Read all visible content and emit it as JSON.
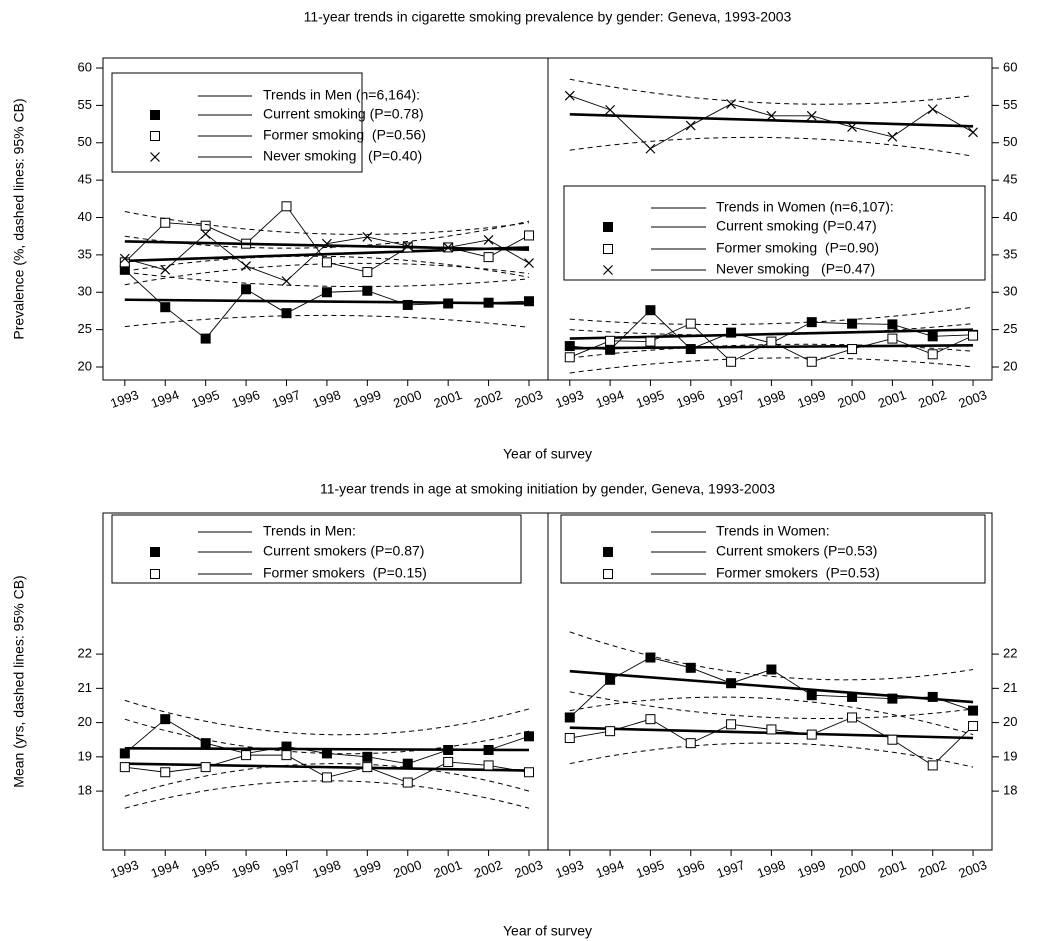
{
  "chart_data": [
    {
      "type": "line",
      "title": "11-year trends in cigarette smoking prevalence by gender: Geneva, 1993-2003",
      "xlabel": "Year of survey",
      "ylabel": "Prevalence (%, dashed lines: 95% CB)",
      "ylim": [
        18.26,
        61.34
      ],
      "yticks": [
        20,
        25,
        30,
        35,
        40,
        45,
        50,
        55,
        60
      ],
      "xlim": [
        1992.46,
        2003.47
      ],
      "panels": [
        {
          "legend_title": "Trends in Men (n=6,164):",
          "x": [
            1993,
            1994,
            1995,
            1996,
            1997,
            1998,
            1999,
            2000,
            2001,
            2002,
            2003
          ],
          "cb_x": [
            1993,
            1998,
            2003
          ],
          "series": [
            {
              "name": "Current smoking (P=0.78)",
              "marker": "square-filled",
              "color": "#000000",
              "values": [
                33.0,
                28.0,
                23.8,
                30.4,
                27.2,
                30.0,
                30.2,
                28.3,
                28.5,
                28.6,
                28.8
              ],
              "trend": [
                29.0,
                28.5
              ],
              "cb_lower": [
                25.4,
                26.9,
                25.3
              ],
              "cb_upper": [
                32.7,
                30.8,
                31.8
              ]
            },
            {
              "name": "Former smoking  (P=0.56)",
              "marker": "square-open",
              "color": "#000000",
              "values": [
                34.0,
                39.3,
                38.9,
                36.5,
                41.5,
                34.0,
                32.7,
                36.0,
                36.0,
                34.7,
                37.6
              ],
              "trend": [
                34.2,
                36.0
              ],
              "cb_lower": [
                31.0,
                33.8,
                32.5
              ],
              "cb_upper": [
                37.5,
                36.0,
                39.5
              ]
            },
            {
              "name": "Never smoking   (P=0.40)",
              "marker": "cross",
              "color": "#000000",
              "values": [
                34.5,
                33.0,
                37.8,
                33.5,
                31.5,
                36.5,
                37.4,
                36.2,
                36.0,
                37.0,
                33.9
              ],
              "trend": [
                36.8,
                35.7
              ],
              "cb_lower": [
                32.8,
                34.8,
                32.0
              ],
              "cb_upper": [
                40.8,
                37.8,
                39.3
              ]
            }
          ]
        },
        {
          "legend_title": "Trends in Women (n=6,107):",
          "x": [
            1993,
            1994,
            1995,
            1996,
            1997,
            1998,
            1999,
            2000,
            2001,
            2002,
            2003
          ],
          "cb_x": [
            1993,
            1998,
            2003
          ],
          "series": [
            {
              "name": "Current smoking (P=0.47)",
              "marker": "square-filled",
              "color": "#000000",
              "values": [
                22.8,
                22.3,
                27.6,
                22.4,
                24.6,
                23.2,
                26.0,
                25.8,
                25.7,
                24.1,
                24.3
              ],
              "trend": [
                23.8,
                25.0
              ],
              "cb_lower": [
                21.2,
                23.0,
                22.1
              ],
              "cb_upper": [
                26.4,
                25.8,
                28.0
              ]
            },
            {
              "name": "Former smoking  (P=0.90)",
              "marker": "square-open",
              "color": "#000000",
              "values": [
                21.3,
                23.5,
                23.4,
                25.8,
                20.7,
                23.4,
                20.7,
                22.4,
                23.8,
                21.7,
                24.2
              ],
              "trend": [
                22.5,
                22.9
              ],
              "cb_lower": [
                19.2,
                21.2,
                20.0
              ],
              "cb_upper": [
                25.0,
                24.3,
                25.8
              ]
            },
            {
              "name": "Never smoking   (P=0.47)",
              "marker": "cross",
              "color": "#000000",
              "values": [
                56.3,
                54.4,
                49.2,
                52.3,
                55.2,
                53.6,
                53.6,
                52.1,
                50.8,
                54.5,
                51.4
              ],
              "trend": [
                53.8,
                52.2
              ],
              "cb_lower": [
                49.0,
                50.7,
                48.2
              ],
              "cb_upper": [
                58.5,
                55.3,
                56.3
              ]
            }
          ]
        }
      ]
    },
    {
      "type": "line",
      "title": "11-year trends in age at smoking initiation by gender, Geneva, 1993-2003",
      "xlabel": "Year of survey",
      "ylabel": "Mean (yrs, dashed lines: 95% CB)",
      "ylim": [
        16.28,
        26.12
      ],
      "yticks": [
        18,
        19,
        20,
        21,
        22
      ],
      "xlim": [
        1992.46,
        2003.47
      ],
      "panels": [
        {
          "legend_title": "Trends in Men:",
          "x": [
            1993,
            1994,
            1995,
            1996,
            1997,
            1998,
            1999,
            2000,
            2001,
            2002,
            2003
          ],
          "cb_x": [
            1993,
            1998,
            2003
          ],
          "series": [
            {
              "name": "Current smokers (P=0.87)",
              "marker": "square-filled",
              "color": "#000000",
              "values": [
                19.1,
                20.1,
                19.4,
                19.1,
                19.3,
                19.1,
                19.0,
                18.8,
                19.2,
                19.2,
                19.6
              ],
              "trend": [
                19.25,
                19.2
              ],
              "cb_lower": [
                17.85,
                18.8,
                18.0
              ],
              "cb_upper": [
                20.65,
                19.65,
                20.4
              ]
            },
            {
              "name": "Former smokers  (P=0.15)",
              "marker": "square-open",
              "color": "#000000",
              "values": [
                18.7,
                18.55,
                18.7,
                19.05,
                19.05,
                18.4,
                18.7,
                18.25,
                18.85,
                18.75,
                18.55
              ],
              "trend": [
                18.8,
                18.6
              ],
              "cb_lower": [
                17.5,
                18.3,
                17.5
              ],
              "cb_upper": [
                20.1,
                19.1,
                19.75
              ]
            }
          ]
        },
        {
          "legend_title": "Trends in Women:",
          "x": [
            1993,
            1994,
            1995,
            1996,
            1997,
            1998,
            1999,
            2000,
            2001,
            2002,
            2003
          ],
          "cb_x": [
            1993,
            1998,
            2003
          ],
          "series": [
            {
              "name": "Current smokers (P=0.53)",
              "marker": "square-filled",
              "color": "#000000",
              "values": [
                20.15,
                21.25,
                21.9,
                21.6,
                21.15,
                21.55,
                20.8,
                20.75,
                20.7,
                20.75,
                20.35
              ],
              "trend": [
                21.5,
                20.6
              ],
              "cb_lower": [
                20.35,
                20.7,
                19.65
              ],
              "cb_upper": [
                22.65,
                21.35,
                21.55
              ]
            },
            {
              "name": "Former smokers  (P=0.53)",
              "marker": "square-open",
              "color": "#000000",
              "values": [
                19.55,
                19.75,
                20.1,
                19.4,
                19.95,
                19.8,
                19.65,
                20.15,
                19.5,
                18.75,
                19.9
              ],
              "trend": [
                19.85,
                19.55
              ],
              "cb_lower": [
                18.8,
                19.4,
                18.7
              ],
              "cb_upper": [
                20.9,
                20.15,
                20.4
              ]
            }
          ]
        }
      ]
    }
  ]
}
